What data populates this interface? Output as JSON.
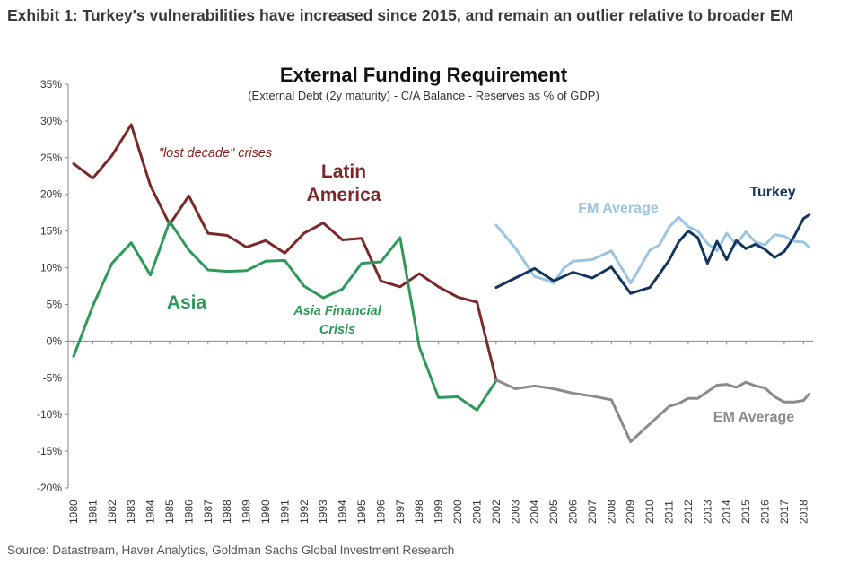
{
  "exhibit_title": "Exhibit 1: Turkey's vulnerabilities have increased since 2015, and remain an outlier relative to broader EM",
  "source": "Source: Datastream, Haver Analytics, Goldman Sachs Global Investment Research",
  "chart_data": {
    "type": "line",
    "title": "External Funding Requirement",
    "subtitle": "(External Debt (2y maturity) - C/A Balance - Reserves  as % of GDP)",
    "xlabel": "",
    "ylabel": "",
    "xlim": [
      1980,
      2018.3
    ],
    "ylim": [
      -20,
      35
    ],
    "y_ticks": [
      35,
      30,
      25,
      20,
      15,
      10,
      5,
      0,
      -5,
      -10,
      -15,
      -20
    ],
    "y_tick_labels": [
      "35%",
      "30%",
      "25%",
      "20%",
      "15%",
      "10%",
      "5%",
      "0%",
      "-5%",
      "-10%",
      "-15%",
      "-20%"
    ],
    "x_ticks": [
      1980,
      1981,
      1982,
      1983,
      1984,
      1985,
      1986,
      1987,
      1988,
      1989,
      1990,
      1991,
      1992,
      1993,
      1994,
      1995,
      1996,
      1997,
      1998,
      1999,
      2000,
      2001,
      2002,
      2003,
      2004,
      2005,
      2006,
      2007,
      2008,
      2009,
      2010,
      2011,
      2012,
      2013,
      2014,
      2015,
      2016,
      2017,
      2018
    ],
    "x_tick_labels": [
      "1980",
      "1981",
      "1982",
      "1983",
      "1984",
      "1985",
      "1986",
      "1987",
      "1988",
      "1989",
      "1990",
      "1991",
      "1992",
      "1993",
      "1994",
      "1995",
      "1996",
      "1997",
      "1998",
      "1999",
      "2000",
      "2001",
      "2002",
      "2003",
      "2004",
      "2005",
      "2006",
      "2007",
      "2008",
      "2009",
      "2010",
      "2011",
      "2012",
      "2013",
      "2014",
      "2015",
      "2016",
      "2017",
      "2018"
    ],
    "grid": false,
    "colors": {
      "latin_america": "#7b2a2a",
      "asia": "#2e9a5a",
      "em_average": "#8a8a8f",
      "fm_average": "#9cc5e4",
      "turkey": "#14365c",
      "lost_decade": "#8b2020"
    },
    "series": [
      {
        "name": "Latin America",
        "color": "#7b2a2a",
        "x": [
          1980,
          1981,
          1982,
          1983,
          1984,
          1985,
          1986,
          1987,
          1988,
          1989,
          1990,
          1991,
          1992,
          1993,
          1994,
          1995,
          1996,
          1997,
          1998,
          1999,
          2000,
          2001,
          2002
        ],
        "y": [
          24.2,
          22.2,
          25.3,
          29.5,
          21.2,
          15.9,
          19.8,
          14.7,
          14.4,
          12.8,
          13.7,
          12.0,
          14.7,
          16.1,
          13.8,
          14.0,
          8.2,
          7.4,
          9.2,
          7.4,
          6.0,
          5.3,
          -5.3
        ]
      },
      {
        "name": "Asia",
        "color": "#2e9a5a",
        "x": [
          1980,
          1981,
          1982,
          1983,
          1984,
          1985,
          1986,
          1987,
          1988,
          1989,
          1990,
          1991,
          1992,
          1993,
          1994,
          1995,
          1996,
          1997,
          1998,
          1999,
          2000,
          2001,
          2002
        ],
        "y": [
          -2.1,
          4.8,
          10.6,
          13.4,
          9.0,
          16.3,
          12.4,
          9.7,
          9.5,
          9.6,
          10.9,
          11.0,
          7.5,
          5.9,
          7.1,
          10.6,
          10.8,
          14.1,
          -0.8,
          -7.7,
          -7.6,
          -9.4,
          -5.4
        ]
      },
      {
        "name": "EM Average",
        "color": "#8a8a8f",
        "x": [
          2002,
          2003,
          2004,
          2005,
          2006,
          2007,
          2008,
          2009,
          2010,
          2011,
          2011.5,
          2012,
          2012.5,
          2013,
          2013.5,
          2014,
          2014.5,
          2015,
          2015.5,
          2016,
          2016.5,
          2017,
          2017.5,
          2018,
          2018.3
        ],
        "y": [
          -5.3,
          -6.5,
          -6.1,
          -6.5,
          -7.1,
          -7.5,
          -8.0,
          -13.7,
          -11.3,
          -8.9,
          -8.5,
          -7.8,
          -7.8,
          -6.9,
          -6.0,
          -5.9,
          -6.3,
          -5.6,
          -6.1,
          -6.4,
          -7.6,
          -8.3,
          -8.3,
          -8.1,
          -7.2
        ]
      },
      {
        "name": "FM Average",
        "color": "#9cc5e4",
        "x": [
          2002,
          2003,
          2004,
          2004.5,
          2005,
          2005.5,
          2006,
          2007,
          2008,
          2009,
          2009.5,
          2010,
          2010.5,
          2011,
          2011.5,
          2012,
          2012.5,
          2013,
          2013.5,
          2014,
          2014.5,
          2015,
          2015.5,
          2016,
          2016.5,
          2017,
          2017.5,
          2018,
          2018.3
        ],
        "y": [
          15.8,
          12.7,
          8.8,
          8.4,
          7.9,
          9.9,
          10.9,
          11.1,
          12.3,
          7.9,
          10.1,
          12.4,
          13.1,
          15.5,
          16.9,
          15.6,
          15.0,
          13.3,
          12.3,
          14.7,
          13.2,
          14.9,
          13.5,
          13.1,
          14.5,
          14.3,
          13.6,
          13.5,
          12.8
        ]
      },
      {
        "name": "Turkey",
        "color": "#14365c",
        "x": [
          2002,
          2003,
          2004,
          2005,
          2006,
          2007,
          2008,
          2009,
          2010,
          2011,
          2011.5,
          2012,
          2012.5,
          2013,
          2013.5,
          2014,
          2014.5,
          2015,
          2015.5,
          2016,
          2016.5,
          2017,
          2017.5,
          2018,
          2018.3
        ],
        "y": [
          7.3,
          8.6,
          9.9,
          8.2,
          9.4,
          8.6,
          10.1,
          6.5,
          7.3,
          11.0,
          13.5,
          15.0,
          14.1,
          10.6,
          13.6,
          11.1,
          13.7,
          12.6,
          13.2,
          12.5,
          11.4,
          12.2,
          14.2,
          16.7,
          17.2
        ]
      }
    ],
    "annotations": [
      {
        "text": "\"lost decade\" crises",
        "color": "#8b2020",
        "style": "italic"
      },
      {
        "text": "Latin",
        "color": "#7b2a2a",
        "style": "bold"
      },
      {
        "text": "America",
        "color": "#7b2a2a",
        "style": "bold"
      },
      {
        "text": "Asia",
        "color": "#2e9a5a",
        "style": "bold"
      },
      {
        "text": "Asia Financial",
        "color": "#2e9a5a",
        "style": "bold-italic"
      },
      {
        "text": "Crisis",
        "color": "#2e9a5a",
        "style": "bold-italic"
      },
      {
        "text": "FM Average",
        "color": "#9cc5e4",
        "style": "bold"
      },
      {
        "text": "Turkey",
        "color": "#14365c",
        "style": "bold"
      },
      {
        "text": "EM Average",
        "color": "#8a8a8f",
        "style": "bold"
      }
    ]
  }
}
